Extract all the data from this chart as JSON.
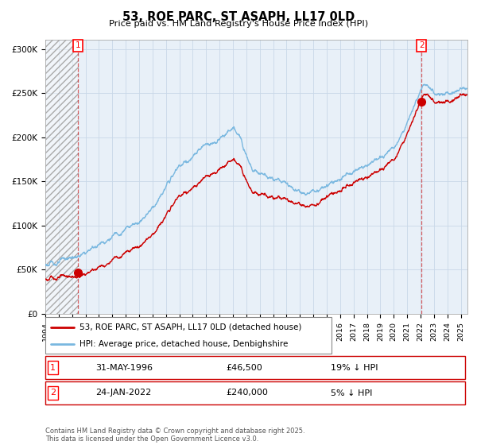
{
  "title": "53, ROE PARC, ST ASAPH, LL17 0LD",
  "subtitle": "Price paid vs. HM Land Registry's House Price Index (HPI)",
  "ylim": [
    0,
    310000
  ],
  "xlim_start": 1994.0,
  "xlim_end": 2025.5,
  "yticks": [
    0,
    50000,
    100000,
    150000,
    200000,
    250000,
    300000
  ],
  "ytick_labels": [
    "£0",
    "£50K",
    "£100K",
    "£150K",
    "£200K",
    "£250K",
    "£300K"
  ],
  "hpi_color": "#7ab8e0",
  "price_color": "#cc0000",
  "sale1_date": 1996.42,
  "sale1_price": 46500,
  "sale1_label": "1",
  "sale2_date": 2022.07,
  "sale2_price": 240000,
  "sale2_label": "2",
  "legend_line1": "53, ROE PARC, ST ASAPH, LL17 0LD (detached house)",
  "legend_line2": "HPI: Average price, detached house, Denbighshire",
  "ann1_num": "1",
  "ann1_text": "31-MAY-1996",
  "ann1_price": "£46,500",
  "ann1_hpi": "19% ↓ HPI",
  "ann2_num": "2",
  "ann2_text": "24-JAN-2022",
  "ann2_price": "£240,000",
  "ann2_hpi": "5% ↓ HPI",
  "footer": "Contains HM Land Registry data © Crown copyright and database right 2025.\nThis data is licensed under the Open Government Licence v3.0.",
  "grid_color": "#c8d8e8",
  "bg_color": "#e8f0f8",
  "shaded_end": 1996.5
}
